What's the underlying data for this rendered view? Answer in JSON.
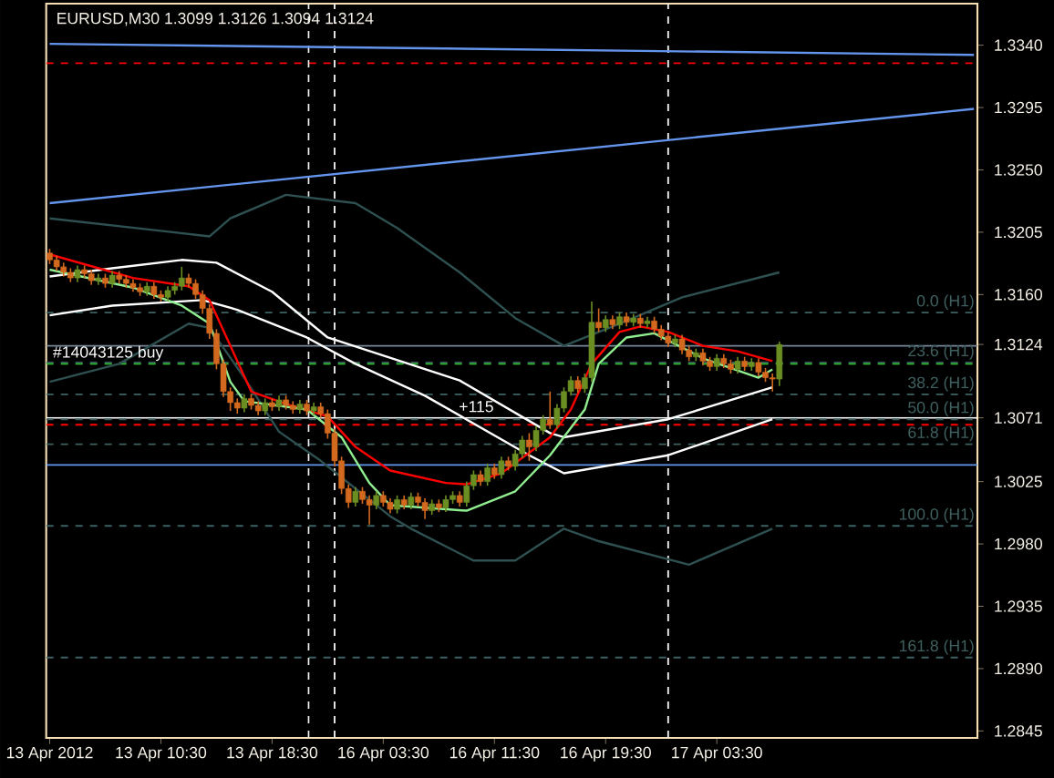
{
  "chart_data": {
    "type": "candlestick",
    "title": "EURUSD,M30  1.3099 1.3126 1.3094 1.3124",
    "categories": [
      "13 Apr 2012",
      null,
      null,
      null,
      null,
      null,
      null,
      null,
      null,
      null,
      null,
      null,
      null,
      null,
      null,
      null,
      "13 Apr 10:30",
      null,
      null,
      null,
      null,
      null,
      null,
      null,
      null,
      null,
      null,
      null,
      null,
      null,
      null,
      null,
      "13 Apr 18:30",
      null,
      null,
      null,
      null,
      null,
      null,
      null,
      null,
      null,
      null,
      null,
      null,
      null,
      null,
      null,
      "16 Apr 03:30",
      null,
      null,
      null,
      null,
      null,
      null,
      null,
      null,
      null,
      null,
      null,
      null,
      null,
      null,
      null,
      "16 Apr 11:30",
      null,
      null,
      null,
      null,
      null,
      null,
      null,
      null,
      null,
      null,
      null,
      null,
      null,
      null,
      null,
      "16 Apr 19:30",
      null,
      null,
      null,
      null,
      null,
      null,
      null,
      null,
      null,
      null,
      null,
      null,
      null,
      null,
      null,
      "17 Apr 03:30",
      null,
      null,
      null,
      null,
      null,
      null,
      null,
      null,
      null,
      null,
      null,
      null,
      null,
      null,
      null,
      null,
      null,
      null,
      null,
      null,
      null,
      null,
      null,
      null,
      null,
      null,
      null,
      null,
      null,
      null,
      null,
      null,
      null,
      null,
      null,
      null,
      null
    ],
    "ohlc": [
      [
        1.319,
        1.3193,
        1.3182,
        1.3185
      ],
      [
        1.3185,
        1.3188,
        1.3177,
        1.318
      ],
      [
        1.318,
        1.3183,
        1.3173,
        1.3176
      ],
      [
        1.3176,
        1.3179,
        1.3169,
        1.3172
      ],
      [
        1.3172,
        1.3181,
        1.3169,
        1.3178
      ],
      [
        1.3178,
        1.3181,
        1.3172,
        1.3175
      ],
      [
        1.3175,
        1.3178,
        1.3167,
        1.317
      ],
      [
        1.317,
        1.3175,
        1.3167,
        1.3172
      ],
      [
        1.3172,
        1.3175,
        1.3165,
        1.3168
      ],
      [
        1.3168,
        1.3177,
        1.3165,
        1.3174
      ],
      [
        1.3174,
        1.3177,
        1.3168,
        1.3171
      ],
      [
        1.3171,
        1.3174,
        1.3165,
        1.3168
      ],
      [
        1.3168,
        1.3171,
        1.3162,
        1.3165
      ],
      [
        1.3165,
        1.3168,
        1.3159,
        1.3162
      ],
      [
        1.3162,
        1.3169,
        1.3159,
        1.3166
      ],
      [
        1.3166,
        1.3169,
        1.3157,
        1.316
      ],
      [
        1.316,
        1.3163,
        1.3155,
        1.3158
      ],
      [
        1.3158,
        1.3166,
        1.3155,
        1.3163
      ],
      [
        1.3163,
        1.3169,
        1.316,
        1.3166
      ],
      [
        1.3166,
        1.318,
        1.3163,
        1.3172
      ],
      [
        1.3172,
        1.3175,
        1.3165,
        1.3168
      ],
      [
        1.3168,
        1.3171,
        1.3157,
        1.316
      ],
      [
        1.316,
        1.3163,
        1.3146,
        1.315
      ],
      [
        1.315,
        1.3153,
        1.3128,
        1.3132
      ],
      [
        1.3132,
        1.3135,
        1.3106,
        1.311
      ],
      [
        1.311,
        1.3113,
        1.3086,
        1.309
      ],
      [
        1.309,
        1.3093,
        1.3076,
        1.3082
      ],
      [
        1.3082,
        1.3085,
        1.3074,
        1.3078
      ],
      [
        1.3078,
        1.3088,
        1.3075,
        1.3085
      ],
      [
        1.3085,
        1.3088,
        1.3077,
        1.308
      ],
      [
        1.308,
        1.3083,
        1.3073,
        1.3076
      ],
      [
        1.3076,
        1.3085,
        1.3073,
        1.3082
      ],
      [
        1.3082,
        1.3085,
        1.3076,
        1.3079
      ],
      [
        1.3079,
        1.3087,
        1.3076,
        1.3084
      ],
      [
        1.3084,
        1.3087,
        1.3077,
        1.308
      ],
      [
        1.308,
        1.3083,
        1.3074,
        1.3077
      ],
      [
        1.3077,
        1.3084,
        1.3074,
        1.3081
      ],
      [
        1.3081,
        1.3084,
        1.3073,
        1.3076
      ],
      [
        1.3076,
        1.3082,
        1.3073,
        1.3079
      ],
      [
        1.3079,
        1.3082,
        1.3071,
        1.3074
      ],
      [
        1.3074,
        1.3077,
        1.3056,
        1.306
      ],
      [
        1.306,
        1.3063,
        1.3036,
        1.304
      ],
      [
        1.304,
        1.3043,
        1.3016,
        1.302
      ],
      [
        1.302,
        1.3023,
        1.3006,
        1.301
      ],
      [
        1.301,
        1.3021,
        1.3007,
        1.3018
      ],
      [
        1.3018,
        1.3021,
        1.3009,
        1.3012
      ],
      [
        1.3012,
        1.3015,
        1.2994,
        1.3008
      ],
      [
        1.3008,
        1.3018,
        1.3005,
        1.3015
      ],
      [
        1.3015,
        1.3018,
        1.3007,
        1.301
      ],
      [
        1.301,
        1.3013,
        1.3002,
        1.3005
      ],
      [
        1.3005,
        1.3015,
        1.3002,
        1.3012
      ],
      [
        1.3012,
        1.3015,
        1.3005,
        1.3008
      ],
      [
        1.3008,
        1.3017,
        1.3005,
        1.3014
      ],
      [
        1.3014,
        1.3017,
        1.3007,
        1.301
      ],
      [
        1.301,
        1.3013,
        1.2998,
        1.3004
      ],
      [
        1.3004,
        1.3012,
        1.3001,
        1.3009
      ],
      [
        1.3009,
        1.3012,
        1.3003,
        1.3006
      ],
      [
        1.3006,
        1.3015,
        1.3003,
        1.3012
      ],
      [
        1.3012,
        1.3018,
        1.3009,
        1.3015
      ],
      [
        1.3015,
        1.3018,
        1.3007,
        1.301
      ],
      [
        1.301,
        1.3025,
        1.3007,
        1.3022
      ],
      [
        1.3022,
        1.3033,
        1.3019,
        1.303
      ],
      [
        1.303,
        1.3033,
        1.3022,
        1.3025
      ],
      [
        1.3025,
        1.3038,
        1.3022,
        1.3035
      ],
      [
        1.3035,
        1.3038,
        1.3027,
        1.303
      ],
      [
        1.303,
        1.3043,
        1.3027,
        1.304
      ],
      [
        1.304,
        1.3043,
        1.3033,
        1.3036
      ],
      [
        1.3036,
        1.3048,
        1.3033,
        1.3045
      ],
      [
        1.3045,
        1.3058,
        1.3042,
        1.3055
      ],
      [
        1.3055,
        1.306,
        1.304,
        1.305
      ],
      [
        1.305,
        1.3065,
        1.3047,
        1.3062
      ],
      [
        1.3062,
        1.3073,
        1.3059,
        1.307
      ],
      [
        1.307,
        1.309,
        1.3063,
        1.3066
      ],
      [
        1.3066,
        1.3081,
        1.3063,
        1.3078
      ],
      [
        1.3078,
        1.3093,
        1.3075,
        1.309
      ],
      [
        1.309,
        1.3101,
        1.3087,
        1.3098
      ],
      [
        1.3098,
        1.3101,
        1.3089,
        1.3092
      ],
      [
        1.3092,
        1.3103,
        1.3089,
        1.31
      ],
      [
        1.31,
        1.3155,
        1.3097,
        1.314
      ],
      [
        1.314,
        1.315,
        1.3133,
        1.3136
      ],
      [
        1.3136,
        1.3145,
        1.3133,
        1.3142
      ],
      [
        1.3142,
        1.3145,
        1.3135,
        1.3138
      ],
      [
        1.3138,
        1.3147,
        1.3135,
        1.3144
      ],
      [
        1.3144,
        1.3147,
        1.3137,
        1.314
      ],
      [
        1.314,
        1.3146,
        1.3137,
        1.3143
      ],
      [
        1.3143,
        1.3146,
        1.3136,
        1.3139
      ],
      [
        1.3139,
        1.3144,
        1.3136,
        1.3141
      ],
      [
        1.3141,
        1.3144,
        1.3132,
        1.3135
      ],
      [
        1.3135,
        1.3138,
        1.3127,
        1.313
      ],
      [
        1.313,
        1.3133,
        1.3122,
        1.3125
      ],
      [
        1.3125,
        1.3131,
        1.3122,
        1.3128
      ],
      [
        1.3128,
        1.3131,
        1.3117,
        1.312
      ],
      [
        1.312,
        1.3123,
        1.3112,
        1.3115
      ],
      [
        1.3115,
        1.3121,
        1.3112,
        1.3118
      ],
      [
        1.3118,
        1.3121,
        1.3109,
        1.3112
      ],
      [
        1.3112,
        1.3115,
        1.3105,
        1.3108
      ],
      [
        1.3108,
        1.3117,
        1.3105,
        1.3114
      ],
      [
        1.3114,
        1.3117,
        1.3107,
        1.311
      ],
      [
        1.311,
        1.3113,
        1.3103,
        1.3106
      ],
      [
        1.3106,
        1.3115,
        1.3103,
        1.3112
      ],
      [
        1.3112,
        1.3115,
        1.3105,
        1.3108
      ],
      [
        1.3108,
        1.3114,
        1.3105,
        1.3111
      ],
      [
        1.3111,
        1.3114,
        1.3101,
        1.3104
      ],
      [
        1.3104,
        1.3107,
        1.3097,
        1.31
      ],
      [
        1.31,
        1.3103,
        1.309,
        1.3099
      ],
      [
        1.3099,
        1.3126,
        1.3094,
        1.3124
      ],
      null,
      null,
      null,
      null,
      null,
      null,
      null,
      null,
      null,
      null,
      null,
      null,
      null,
      null,
      null,
      null,
      null,
      null,
      null,
      null,
      null,
      null,
      null,
      null,
      null,
      null,
      null,
      null
    ],
    "series": [
      {
        "type": "line",
        "color": "#2f5050",
        "values": [
          1.3215,
          null,
          null,
          null,
          null,
          null,
          null,
          null,
          null,
          null,
          null,
          null,
          null,
          null,
          null,
          null,
          1.3206,
          null,
          null,
          null,
          null,
          null,
          null,
          1.3202,
          null,
          null,
          1.3215,
          null,
          null,
          null,
          null,
          null,
          null,
          null,
          1.3232,
          null,
          null,
          null,
          null,
          null,
          null,
          null,
          null,
          null,
          1.3226,
          null,
          null,
          null,
          null,
          null,
          1.3208,
          null,
          null,
          null,
          null,
          null,
          null,
          null,
          null,
          1.3176,
          null,
          null,
          null,
          null,
          null,
          null,
          null,
          1.3143,
          null,
          null,
          null,
          null,
          null,
          null,
          1.3123,
          null,
          null,
          null,
          null,
          null,
          null,
          null,
          1.3139,
          null,
          null,
          null,
          null,
          null,
          null,
          null,
          null,
          1.3158,
          null,
          null,
          null,
          null,
          null,
          null,
          null,
          null,
          null,
          null,
          null,
          null,
          null,
          1.3176,
          null,
          null,
          null,
          null,
          null,
          null,
          null,
          null,
          null,
          null,
          null,
          null,
          null,
          null,
          null,
          null,
          null,
          null,
          null,
          null,
          null,
          null,
          null,
          null,
          null,
          null,
          null,
          null
        ]
      },
      {
        "type": "line",
        "color": "#2f5050",
        "values": [
          1.3097,
          null,
          null,
          null,
          null,
          null,
          null,
          null,
          null,
          null,
          1.311,
          null,
          null,
          null,
          null,
          null,
          null,
          null,
          null,
          null,
          1.3139,
          null,
          null,
          1.3136,
          null,
          null,
          null,
          null,
          1.31,
          null,
          null,
          null,
          null,
          1.3061,
          null,
          null,
          null,
          null,
          null,
          1.304,
          null,
          null,
          null,
          null,
          null,
          null,
          null,
          null,
          null,
          1.3,
          null,
          null,
          1.2991,
          null,
          null,
          null,
          null,
          null,
          null,
          null,
          null,
          1.2968,
          null,
          null,
          null,
          null,
          null,
          1.2968,
          null,
          null,
          null,
          null,
          null,
          null,
          1.2991,
          null,
          null,
          null,
          null,
          1.2982,
          null,
          null,
          null,
          null,
          null,
          null,
          null,
          null,
          null,
          null,
          null,
          null,
          1.2965,
          null,
          null,
          null,
          null,
          null,
          null,
          null,
          null,
          null,
          null,
          null,
          1.2991,
          null,
          null,
          null,
          null,
          null,
          null,
          null,
          null,
          null,
          null,
          null,
          null,
          null,
          null,
          null,
          null,
          null,
          null,
          null,
          null,
          null,
          null,
          null,
          null,
          null,
          null,
          null,
          null,
          null
        ]
      },
      {
        "type": "line",
        "color": "#ffffff",
        "values": [
          1.3173,
          null,
          null,
          null,
          null,
          null,
          null,
          null,
          null,
          1.3179,
          null,
          null,
          null,
          null,
          null,
          null,
          null,
          null,
          null,
          1.3185,
          null,
          null,
          null,
          null,
          1.3183,
          null,
          null,
          null,
          null,
          null,
          null,
          null,
          1.3162,
          null,
          null,
          null,
          null,
          null,
          null,
          null,
          1.3129,
          null,
          null,
          null,
          null,
          null,
          null,
          null,
          null,
          null,
          null,
          null,
          null,
          null,
          null,
          null,
          null,
          null,
          null,
          1.3098,
          null,
          null,
          null,
          null,
          null,
          null,
          null,
          null,
          null,
          null,
          null,
          null,
          1.306,
          null,
          1.3057,
          null,
          null,
          null,
          null,
          null,
          null,
          null,
          null,
          null,
          null,
          null,
          null,
          null,
          null,
          1.307,
          null,
          null,
          null,
          null,
          null,
          null,
          null,
          null,
          null,
          null,
          null,
          null,
          null,
          null,
          1.3093,
          null,
          null,
          null,
          null,
          null,
          null,
          null,
          null,
          null,
          null,
          null,
          null,
          null,
          null,
          null,
          null,
          null,
          null,
          null,
          null,
          null,
          null,
          null,
          null,
          null,
          null,
          null,
          null,
          null
        ]
      },
      {
        "type": "line",
        "color": "#ffffff",
        "values": [
          1.3145,
          null,
          null,
          null,
          null,
          null,
          null,
          null,
          null,
          1.3152,
          null,
          null,
          null,
          null,
          null,
          null,
          null,
          null,
          null,
          null,
          null,
          null,
          1.3156,
          null,
          null,
          null,
          null,
          1.3149,
          null,
          null,
          null,
          null,
          null,
          null,
          null,
          null,
          null,
          1.3129,
          null,
          null,
          null,
          null,
          null,
          null,
          1.311,
          null,
          null,
          null,
          null,
          null,
          null,
          null,
          null,
          null,
          1.3087,
          null,
          null,
          null,
          null,
          null,
          null,
          null,
          null,
          null,
          null,
          null,
          null,
          null,
          null,
          1.3044,
          null,
          null,
          null,
          null,
          1.3031,
          null,
          null,
          null,
          null,
          null,
          null,
          null,
          null,
          null,
          null,
          null,
          null,
          null,
          null,
          1.3044,
          null,
          null,
          null,
          null,
          null,
          null,
          null,
          null,
          null,
          null,
          null,
          null,
          null,
          null,
          1.307,
          null,
          null,
          null,
          null,
          null,
          null,
          null,
          null,
          null,
          null,
          null,
          null,
          null,
          null,
          null,
          null,
          null,
          null,
          null,
          null,
          null,
          null,
          null,
          null,
          null,
          null,
          null,
          null,
          null
        ]
      },
      {
        "type": "line",
        "color": "#ff0000",
        "values": [
          1.3189,
          null,
          null,
          null,
          null,
          null,
          null,
          null,
          null,
          null,
          null,
          null,
          1.3172,
          null,
          null,
          null,
          null,
          null,
          null,
          null,
          1.3166,
          null,
          null,
          1.3156,
          null,
          null,
          1.3123,
          null,
          null,
          1.309,
          null,
          null,
          null,
          null,
          1.3081,
          null,
          null,
          null,
          null,
          null,
          1.3072,
          null,
          null,
          null,
          1.305,
          null,
          null,
          null,
          null,
          1.3033,
          null,
          null,
          null,
          null,
          null,
          null,
          null,
          1.3024,
          null,
          null,
          1.3023,
          null,
          null,
          null,
          null,
          1.3031,
          null,
          null,
          null,
          null,
          null,
          null,
          1.3057,
          null,
          null,
          1.3077,
          null,
          null,
          1.311,
          null,
          null,
          null,
          1.3133,
          null,
          null,
          1.3137,
          null,
          null,
          null,
          1.3133,
          null,
          null,
          null,
          null,
          1.3123,
          null,
          null,
          null,
          null,
          1.3119,
          null,
          null,
          null,
          null,
          1.3112,
          null,
          null,
          null,
          null,
          null,
          null,
          null,
          null,
          null,
          null,
          null,
          null,
          null,
          null,
          null,
          null,
          null,
          null,
          null,
          null,
          null,
          null,
          null,
          null,
          null,
          null,
          null,
          null,
          null
        ]
      },
      {
        "type": "line",
        "color": "#90ee90",
        "values": [
          1.3178,
          null,
          null,
          null,
          null,
          null,
          null,
          null,
          null,
          null,
          null,
          null,
          1.3165,
          null,
          null,
          null,
          null,
          null,
          null,
          1.3152,
          null,
          null,
          null,
          1.3139,
          null,
          null,
          1.3097,
          null,
          1.3083,
          null,
          null,
          null,
          null,
          null,
          null,
          null,
          null,
          1.3077,
          null,
          null,
          null,
          null,
          1.3057,
          null,
          null,
          null,
          1.3024,
          null,
          null,
          1.3008,
          null,
          null,
          null,
          null,
          null,
          null,
          null,
          null,
          null,
          null,
          1.3004,
          null,
          null,
          null,
          null,
          null,
          null,
          1.3018,
          null,
          null,
          null,
          null,
          1.3044,
          null,
          null,
          null,
          null,
          1.3077,
          null,
          1.311,
          null,
          null,
          null,
          1.3129,
          null,
          null,
          null,
          1.3132,
          null,
          null,
          null,
          null,
          null,
          null,
          1.3114,
          null,
          null,
          null,
          null,
          null,
          null,
          null,
          1.31,
          null,
          1.3106,
          null,
          null,
          null,
          null,
          null,
          null,
          null,
          null,
          null,
          null,
          null,
          null,
          null,
          null,
          null,
          null,
          null,
          null,
          null,
          null,
          null,
          null,
          null,
          null,
          null,
          null,
          null,
          null,
          null
        ]
      },
      {
        "type": "line",
        "color": "#6495ed",
        "values": [
          1.3341,
          null,
          null,
          null,
          null,
          null,
          null,
          null,
          null,
          null,
          null,
          null,
          null,
          null,
          null,
          null,
          null,
          null,
          null,
          null,
          null,
          null,
          null,
          null,
          null,
          null,
          null,
          null,
          null,
          null,
          null,
          null,
          null,
          null,
          null,
          null,
          null,
          null,
          null,
          null,
          null,
          null,
          null,
          null,
          null,
          null,
          null,
          null,
          null,
          null,
          null,
          null,
          null,
          null,
          null,
          null,
          null,
          null,
          null,
          null,
          null,
          null,
          null,
          null,
          null,
          null,
          null,
          null,
          null,
          null,
          null,
          null,
          null,
          null,
          null,
          null,
          null,
          null,
          null,
          null,
          null,
          null,
          null,
          null,
          null,
          null,
          null,
          null,
          null,
          null,
          null,
          null,
          null,
          null,
          null,
          null,
          null,
          null,
          null,
          null,
          null,
          null,
          null,
          null,
          null,
          null,
          null,
          null,
          null,
          null,
          null,
          null,
          null,
          null,
          null,
          null,
          null,
          null,
          null,
          null,
          null,
          null,
          null,
          null,
          null,
          null,
          null,
          null,
          null,
          null,
          null,
          null,
          null,
          1.3333
        ]
      },
      {
        "type": "line",
        "color": "#6495ed",
        "values": [
          1.3226,
          null,
          null,
          null,
          null,
          null,
          null,
          null,
          null,
          null,
          null,
          null,
          null,
          null,
          null,
          null,
          null,
          null,
          null,
          null,
          null,
          null,
          null,
          null,
          null,
          null,
          null,
          null,
          null,
          null,
          null,
          null,
          null,
          null,
          null,
          null,
          null,
          null,
          null,
          null,
          null,
          null,
          null,
          null,
          null,
          null,
          null,
          null,
          null,
          null,
          null,
          null,
          null,
          null,
          null,
          null,
          null,
          null,
          null,
          null,
          null,
          null,
          null,
          null,
          null,
          null,
          null,
          null,
          null,
          null,
          null,
          null,
          null,
          null,
          null,
          null,
          null,
          null,
          null,
          null,
          null,
          null,
          null,
          null,
          null,
          null,
          null,
          null,
          null,
          null,
          null,
          null,
          null,
          null,
          null,
          null,
          null,
          null,
          null,
          null,
          null,
          null,
          null,
          null,
          null,
          null,
          null,
          null,
          null,
          null,
          null,
          null,
          null,
          null,
          null,
          null,
          null,
          null,
          null,
          null,
          null,
          null,
          null,
          null,
          null,
          null,
          null,
          null,
          null,
          null,
          null,
          null,
          null,
          1.3294
        ]
      }
    ],
    "ylim": [
      1.284,
      1.337
    ],
    "yticks": [
      {
        "value": 1.2845,
        "label": "1.2845"
      },
      {
        "value": 1.289,
        "label": "1.2890"
      },
      {
        "value": 1.2935,
        "label": "1.2935"
      },
      {
        "value": 1.298,
        "label": "1.2980"
      },
      {
        "value": 1.3025,
        "label": "1.3025"
      },
      {
        "value": 1.3071,
        "label": "1.3071"
      },
      {
        "value": 1.3124,
        "label": "1.3124"
      },
      {
        "value": 1.316,
        "label": "1.3160"
      },
      {
        "value": 1.3205,
        "label": "1.3205"
      },
      {
        "value": 1.325,
        "label": "1.3250"
      },
      {
        "value": 1.3295,
        "label": "1.3295"
      },
      {
        "value": 1.334,
        "label": "1.3340"
      }
    ],
    "ref_lines": [
      {
        "axis": "y",
        "value": 1.3037,
        "color": "#6495ed",
        "line_style": "solid"
      },
      {
        "axis": "y",
        "value": 1.3071,
        "color": "#ffffff",
        "line_style": "solid"
      },
      {
        "axis": "y",
        "value": 1.311,
        "color": "#32cd32",
        "line_style": "dashed"
      },
      {
        "axis": "y",
        "value": 1.3066,
        "color": "#ff0000",
        "line_style": "dashed"
      },
      {
        "axis": "y",
        "value": 1.3327,
        "color": "#ff0000",
        "line_style": "dashed"
      },
      {
        "axis": "y",
        "value": 1.3123,
        "color": "#778899",
        "line_style": "solid"
      },
      {
        "axis": "y",
        "value": 1.3147,
        "label": "0.0 (H1)",
        "color": "#3f6060",
        "line_style": "dashed"
      },
      {
        "axis": "y",
        "value": 1.3111,
        "label": "23.6 (H1)",
        "color": "#3f6060",
        "line_style": "dashed"
      },
      {
        "axis": "y",
        "value": 1.3088,
        "label": "38.2 (H1)",
        "color": "#3f6060",
        "line_style": "dashed"
      },
      {
        "axis": "y",
        "value": 1.307,
        "label": "50.0 (H1)",
        "color": "#3f6060",
        "line_style": "dashed"
      },
      {
        "axis": "y",
        "value": 1.3052,
        "label": "61.8 (H1)",
        "color": "#3f6060",
        "line_style": "dashed"
      },
      {
        "axis": "y",
        "value": 1.2993,
        "label": "100.0 (H1)",
        "color": "#3f6060",
        "line_style": "dashed"
      },
      {
        "axis": "y",
        "value": 1.2898,
        "label": "161.8 (H1)",
        "color": "#3f6060",
        "line_style": "dashed"
      }
    ],
    "annotations": [
      {
        "text": "#14043125 buy",
        "y": 1.311
      },
      {
        "text": "+115",
        "y": 1.3073
      }
    ]
  }
}
